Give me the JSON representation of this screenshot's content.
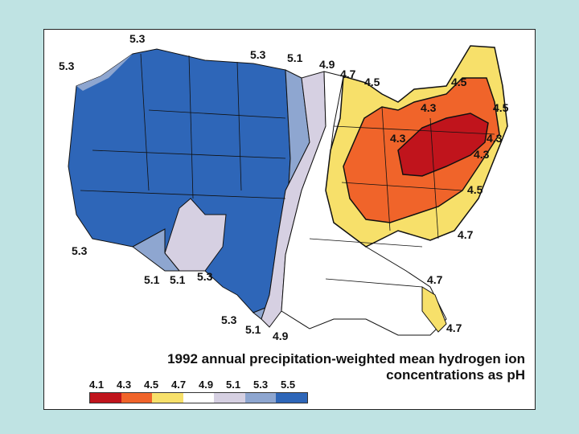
{
  "caption": {
    "line1": "1992 annual precipitation-weighted mean hydrogen ion",
    "line2": "concentrations as pH"
  },
  "legend": {
    "ticks": [
      "4.1",
      "4.3",
      "4.5",
      "4.7",
      "4.9",
      "5.1",
      "5.3",
      "5.5"
    ],
    "colors": [
      "#c0141c",
      "#f0642a",
      "#f7e06a",
      "#ffffff",
      "#d6d0e2",
      "#8ea6d0",
      "#2e66b8"
    ]
  },
  "map_labels": [
    "5.3",
    "5.3",
    "5.3",
    "5.1",
    "4.9",
    "4.7",
    "4.5",
    "4.5",
    "4.3",
    "4.5",
    "4.3",
    "4.3",
    "4.3",
    "4.5",
    "4.7",
    "4.7",
    "4.7",
    "5.3",
    "5.1",
    "5.1",
    "5.3",
    "5.3",
    "5.1",
    "4.9"
  ],
  "colors": {
    "background": "#bfe3e3",
    "frame": "#ffffff"
  }
}
